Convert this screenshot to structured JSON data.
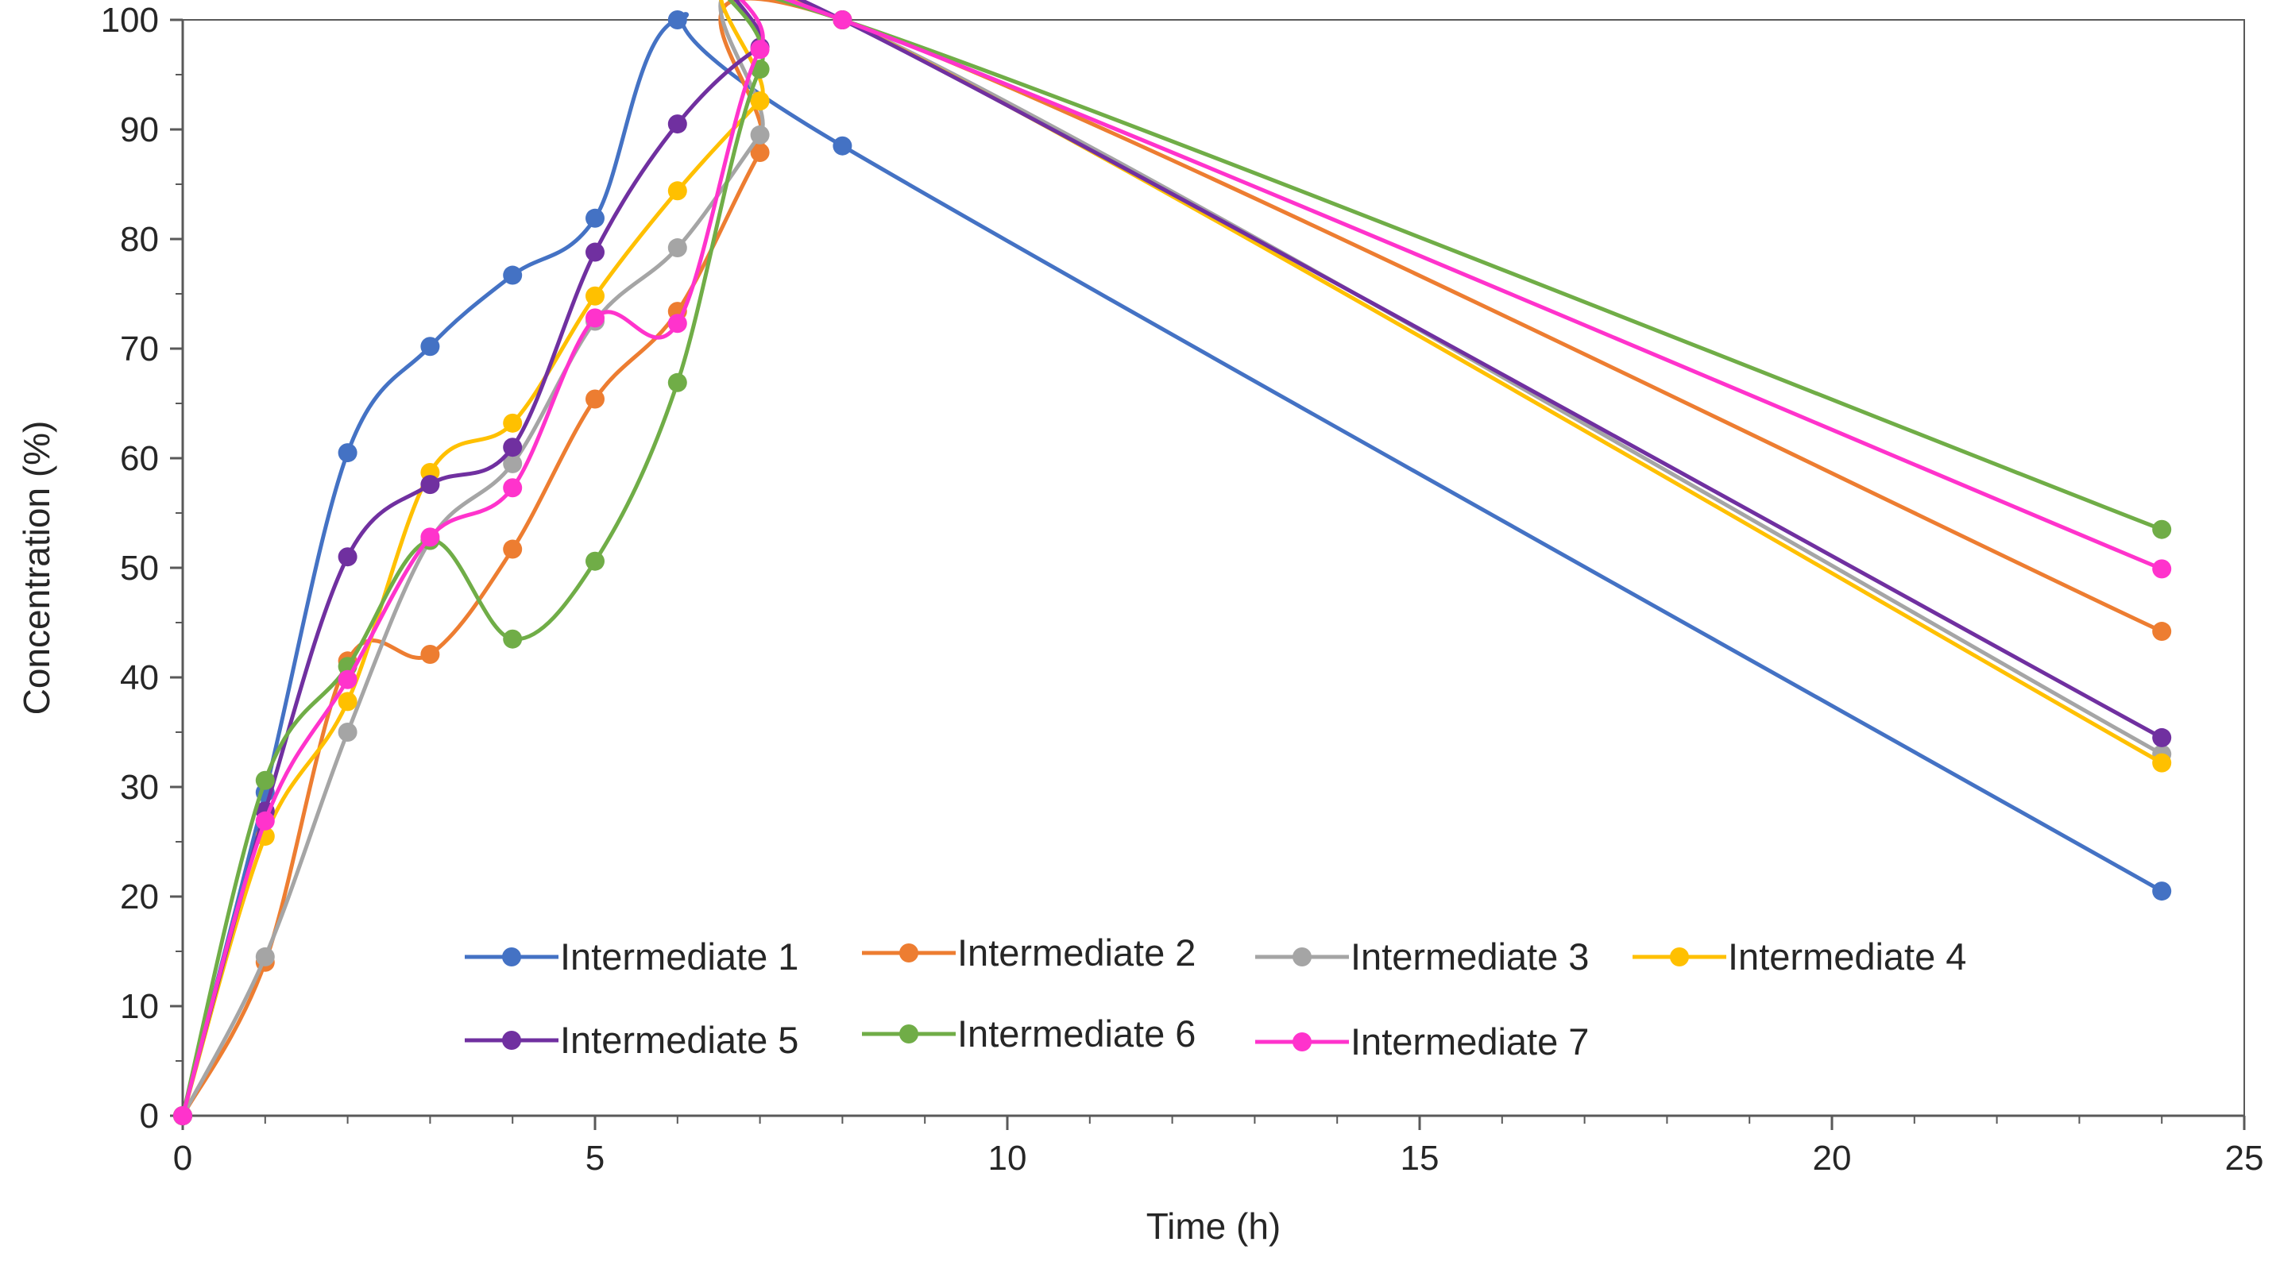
{
  "chart_data": {
    "type": "line",
    "smoothed": true,
    "title": "",
    "xlabel": "Time (h)",
    "ylabel": "Concentration (%)",
    "xlim": [
      0,
      25
    ],
    "ylim": [
      0,
      100
    ],
    "xticks": [
      0,
      5,
      10,
      15,
      20,
      25
    ],
    "yticks": [
      0,
      10,
      20,
      30,
      40,
      50,
      60,
      70,
      80,
      90,
      100
    ],
    "grid": false,
    "legend_position": "bottom-center-inside",
    "series": [
      {
        "name": "Intermediate 1",
        "color": "#4472C4",
        "x": [
          0,
          1,
          2,
          3,
          4,
          5,
          6,
          8,
          24
        ],
        "y": [
          0,
          29.5,
          60.5,
          70.2,
          76.7,
          81.9,
          100,
          88.5,
          20.5
        ]
      },
      {
        "name": "Intermediate 2",
        "color": "#ED7D31",
        "x": [
          0,
          1,
          2,
          3,
          4,
          5,
          6,
          7,
          8,
          24
        ],
        "y": [
          0,
          14,
          41.5,
          42.1,
          51.7,
          65.4,
          73.4,
          87.9,
          100,
          44.2
        ]
      },
      {
        "name": "Intermediate 3",
        "color": "#A5A5A5",
        "x": [
          0,
          1,
          2,
          3,
          4,
          5,
          6,
          7,
          8,
          24
        ],
        "y": [
          0,
          14.5,
          35,
          52.5,
          59.5,
          72.5,
          79.2,
          89.5,
          100,
          33
        ]
      },
      {
        "name": "Intermediate 4",
        "color": "#FFC000",
        "x": [
          0,
          1,
          2,
          3,
          4,
          5,
          6,
          7,
          8,
          24
        ],
        "y": [
          0,
          25.5,
          37.8,
          58.7,
          63.2,
          74.8,
          84.4,
          92.6,
          100,
          32.2
        ]
      },
      {
        "name": "Intermediate 5",
        "color": "#7030A0",
        "x": [
          0,
          1,
          2,
          3,
          4,
          5,
          6,
          7,
          8,
          24
        ],
        "y": [
          0,
          27.8,
          51,
          57.6,
          61,
          78.8,
          90.5,
          97.5,
          100,
          34.5
        ]
      },
      {
        "name": "Intermediate 6",
        "color": "#70AD47",
        "x": [
          0,
          1,
          2,
          3,
          4,
          5,
          6,
          7,
          8,
          24
        ],
        "y": [
          0,
          30.6,
          41,
          52.5,
          43.5,
          50.6,
          66.9,
          95.5,
          100,
          53.5
        ]
      },
      {
        "name": "Intermediate 7",
        "color": "#FF33CC",
        "x": [
          0,
          1,
          2,
          3,
          4,
          5,
          6,
          7,
          8,
          24
        ],
        "y": [
          0,
          26.9,
          39.8,
          52.8,
          57.3,
          72.8,
          72.3,
          97.3,
          100,
          49.9
        ]
      }
    ]
  }
}
